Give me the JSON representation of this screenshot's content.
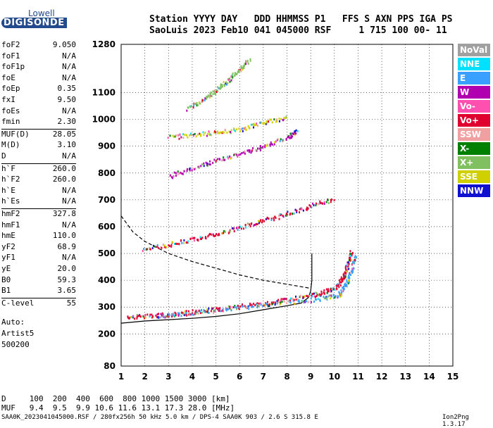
{
  "logo": {
    "top": "Lowell",
    "bottom": "DIGISONDE"
  },
  "header": {
    "line1": "Station YYYY DAY   DDD HHMMSS P1   FFS S AXN PPS IGA PS",
    "line2": "SaoLuis 2023 Feb10 041 045000 RSF     1 715 100 00- 11"
  },
  "params": [
    {
      "name": "foF2",
      "value": "9.050"
    },
    {
      "name": "foF1",
      "value": "N/A"
    },
    {
      "name": "foF1p",
      "value": "N/A"
    },
    {
      "name": "foE",
      "value": "N/A"
    },
    {
      "name": "foEp",
      "value": "0.35"
    },
    {
      "name": "fxI",
      "value": "9.50"
    },
    {
      "name": "foEs",
      "value": "N/A"
    },
    {
      "name": "fmin",
      "value": "2.30"
    },
    {
      "name": "MUF(D)",
      "value": "28.05"
    },
    {
      "name": "M(D)",
      "value": "3.10"
    },
    {
      "name": "D",
      "value": "N/A"
    },
    {
      "name": "h`F",
      "value": "260.0"
    },
    {
      "name": "h`F2",
      "value": "260.0"
    },
    {
      "name": "h`E",
      "value": "N/A"
    },
    {
      "name": "h`Es",
      "value": "N/A"
    },
    {
      "name": "hmF2",
      "value": "327.8"
    },
    {
      "name": "hmF1",
      "value": "N/A"
    },
    {
      "name": "hmE",
      "value": "110.0"
    },
    {
      "name": "yF2",
      "value": "68.9"
    },
    {
      "name": "yF1",
      "value": "N/A"
    },
    {
      "name": "yE",
      "value": "20.0"
    },
    {
      "name": "B0",
      "value": "59.3"
    },
    {
      "name": "B1",
      "value": "3.65"
    },
    {
      "name": "C-level",
      "value": "55"
    }
  ],
  "notes": [
    "Auto:",
    "Artist5",
    "500200"
  ],
  "legend": [
    {
      "label": "NoVal",
      "color": "#a0a0a0"
    },
    {
      "label": "NNE",
      "color": "#00e0ff"
    },
    {
      "label": "E",
      "color": "#3aa0ff"
    },
    {
      "label": "W",
      "color": "#b000b0"
    },
    {
      "label": "Vo-",
      "color": "#ff50b0"
    },
    {
      "label": "Vo+",
      "color": "#e00030"
    },
    {
      "label": "SSW",
      "color": "#f0a0a0"
    },
    {
      "label": "X-",
      "color": "#008000"
    },
    {
      "label": "X+",
      "color": "#80c060"
    },
    {
      "label": "SSE",
      "color": "#d0d000"
    },
    {
      "label": "NNW",
      "color": "#1010d0"
    }
  ],
  "conversion": {
    "line1": "D     100  200  400  600  800 1000 1500 3000 [km]",
    "line2": "MUF   9.4  9.5  9.9 10.6 11.6 13.1 17.3 28.0 [MHz]"
  },
  "footer": "SAA0K_2023041045000.RSF / 280fx256h 50 kHz 5.0 km / DPS-4 SAA0K 903 / 2.6 S 315.8 E",
  "version": "Ion2Png 1.3.17",
  "chart_data": {
    "type": "scatter",
    "x_ticks": [
      1,
      2,
      3,
      4,
      5,
      6,
      7,
      8,
      9,
      10,
      11,
      12,
      13,
      14,
      15
    ],
    "y_ticks": [
      80,
      200,
      300,
      400,
      500,
      600,
      700,
      800,
      900,
      1000,
      1100,
      1280
    ],
    "xlim": [
      1,
      15
    ],
    "ylim": [
      80,
      1280
    ],
    "grid": true,
    "traces": [
      {
        "name": "o-trace F2",
        "color": "#e00030",
        "points": [
          [
            1.2,
            265
          ],
          [
            2,
            270
          ],
          [
            3,
            275
          ],
          [
            4,
            285
          ],
          [
            5,
            295
          ],
          [
            6,
            305
          ],
          [
            7,
            315
          ],
          [
            8,
            330
          ],
          [
            9,
            345
          ],
          [
            9.6,
            360
          ],
          [
            10.1,
            380
          ],
          [
            10.4,
            420
          ],
          [
            10.6,
            470
          ],
          [
            10.7,
            510
          ]
        ]
      },
      {
        "name": "x-trace F2",
        "color": "#3aa0ff",
        "points": [
          [
            2.5,
            268
          ],
          [
            4,
            282
          ],
          [
            6,
            300
          ],
          [
            8,
            320
          ],
          [
            9.5,
            335
          ],
          [
            10.2,
            350
          ],
          [
            10.5,
            390
          ],
          [
            10.7,
            440
          ],
          [
            10.9,
            500
          ]
        ]
      },
      {
        "name": "2nd hop",
        "color": "#e00030",
        "points": [
          [
            1.9,
            520
          ],
          [
            3,
            535
          ],
          [
            4,
            555
          ],
          [
            5,
            575
          ],
          [
            6,
            600
          ],
          [
            7,
            625
          ],
          [
            8,
            650
          ],
          [
            9,
            680
          ],
          [
            10,
            705
          ]
        ]
      },
      {
        "name": "3rd hop",
        "color": "#b000b0",
        "points": [
          [
            3,
            790
          ],
          [
            4,
            820
          ],
          [
            5,
            850
          ],
          [
            6,
            875
          ],
          [
            7,
            900
          ],
          [
            8,
            935
          ],
          [
            8.4,
            960
          ]
        ]
      },
      {
        "name": "upper scatter",
        "color": "#d0d000",
        "points": [
          [
            3,
            935
          ],
          [
            4,
            945
          ],
          [
            5,
            955
          ],
          [
            6,
            965
          ],
          [
            7,
            990
          ],
          [
            8,
            1010
          ]
        ]
      },
      {
        "name": "4th hop",
        "color": "#80c060",
        "points": [
          [
            3.8,
            1040
          ],
          [
            4.5,
            1080
          ],
          [
            5,
            1110
          ],
          [
            5.5,
            1150
          ],
          [
            6,
            1190
          ],
          [
            6.4,
            1230
          ]
        ]
      }
    ],
    "model_curves": [
      {
        "name": "profile",
        "style": "solid",
        "points": [
          [
            1,
            240
          ],
          [
            2,
            248
          ],
          [
            3,
            253
          ],
          [
            4,
            258
          ],
          [
            5,
            265
          ],
          [
            6,
            275
          ],
          [
            7,
            290
          ],
          [
            8,
            305
          ],
          [
            8.6,
            315
          ],
          [
            8.9,
            335
          ],
          [
            9.0,
            360
          ],
          [
            9.05,
            400
          ],
          [
            9.05,
            500
          ]
        ]
      },
      {
        "name": "MUF",
        "style": "dashed",
        "points": [
          [
            1,
            640
          ],
          [
            1.5,
            580
          ],
          [
            2,
            545
          ],
          [
            3,
            500
          ],
          [
            4,
            470
          ],
          [
            5,
            445
          ],
          [
            6,
            420
          ],
          [
            7,
            400
          ],
          [
            8,
            385
          ],
          [
            9,
            370
          ]
        ]
      }
    ]
  }
}
